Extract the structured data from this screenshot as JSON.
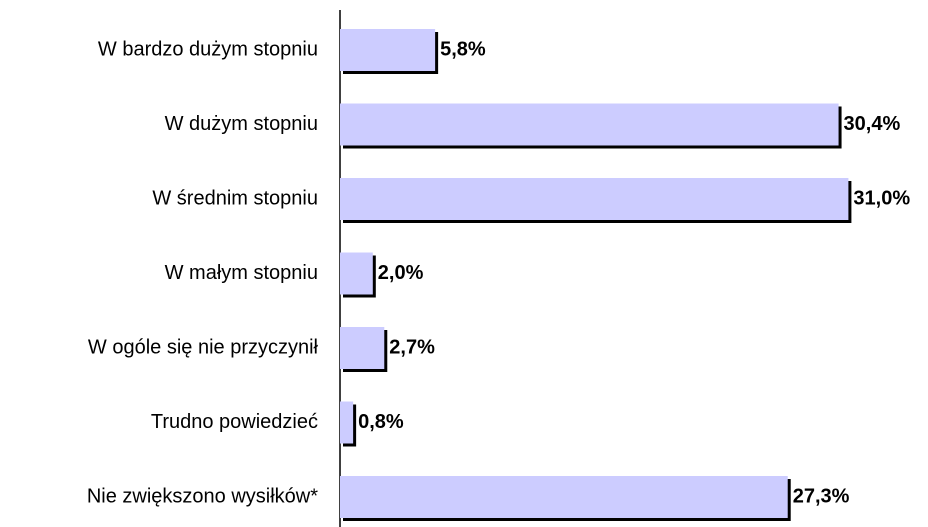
{
  "chart_data": {
    "type": "barh",
    "categories": [
      "W bardzo dużym stopniu",
      "W dużym stopniu",
      "W średnim stopniu",
      "W małym stopniu",
      "W ogóle się nie przyczynił",
      "Trudno powiedzieć",
      "Nie zwiększono wysiłków*"
    ],
    "values": [
      5.8,
      30.4,
      31.0,
      2.0,
      2.7,
      0.8,
      27.3
    ],
    "value_labels": [
      "5,8%",
      "30,4%",
      "31,0%",
      "2,0%",
      "2,7%",
      "0,8%",
      "27,3%"
    ],
    "color": "#ccccff"
  }
}
